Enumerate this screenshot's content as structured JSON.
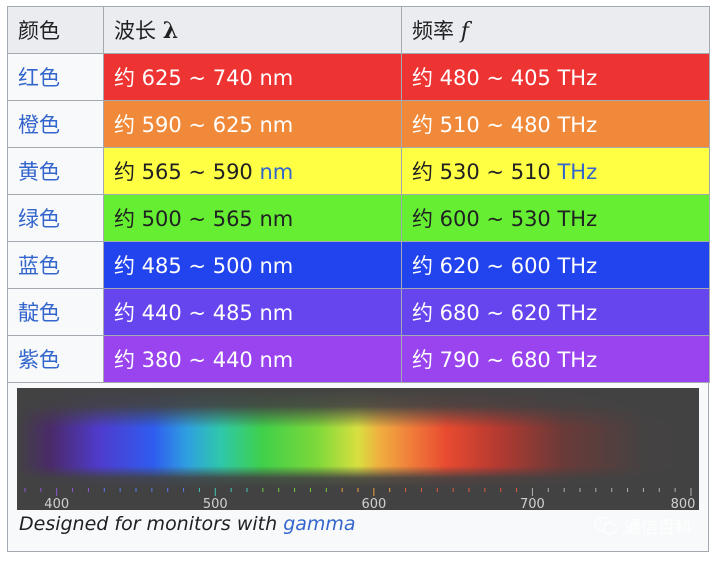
{
  "header": {
    "col_color": "颜色",
    "col_wavelength": "波长",
    "wavelength_symbol": "λ",
    "col_frequency": "频率",
    "frequency_symbol": "f"
  },
  "rows": [
    {
      "name": "红色",
      "wavelength": "约 625 ~ 740 nm",
      "frequency": "约 480 ~ 405 THz",
      "color": "#ee3333"
    },
    {
      "name": "橙色",
      "wavelength": "约 590 ~ 625 nm",
      "frequency": "约 510 ~ 480 THz",
      "color": "#f08a3a"
    },
    {
      "name": "黄色",
      "wavelength_prefix": "约 565 ~ 590 ",
      "wavelength_unit": "nm",
      "frequency_prefix": "约 530 ~ 510 ",
      "frequency_unit": "THz",
      "color": "#ffff44"
    },
    {
      "name": "绿色",
      "wavelength": "约 500 ~ 565 nm",
      "frequency": "约 600 ~ 530 THz",
      "color": "#66ee33"
    },
    {
      "name": "蓝色",
      "wavelength": "约 485 ~ 500 nm",
      "frequency": "约 620 ~ 600 THz",
      "color": "#2244ee"
    },
    {
      "name": "靛色",
      "wavelength": "约 440 ~ 485 nm",
      "frequency": "约 680 ~ 620 THz",
      "color": "#6644ee"
    },
    {
      "name": "紫色",
      "wavelength": "约 380 ~ 440 nm",
      "frequency": "约 790 ~ 680 THz",
      "color": "#9944ee"
    }
  ],
  "spectrum": {
    "tick_labels": [
      "400",
      "500",
      "600",
      "700",
      "800"
    ],
    "range_nm": [
      380,
      800
    ]
  },
  "caption": {
    "text": "Designed for monitors with ",
    "link": "gamma"
  },
  "watermark": {
    "text": "通信百科",
    "icon": "wechat-icon"
  },
  "colors": {
    "link": "#3366cc",
    "header_bg": "#eaecf0",
    "border": "#a2a9b1",
    "spectrum_bg": "#424242"
  }
}
